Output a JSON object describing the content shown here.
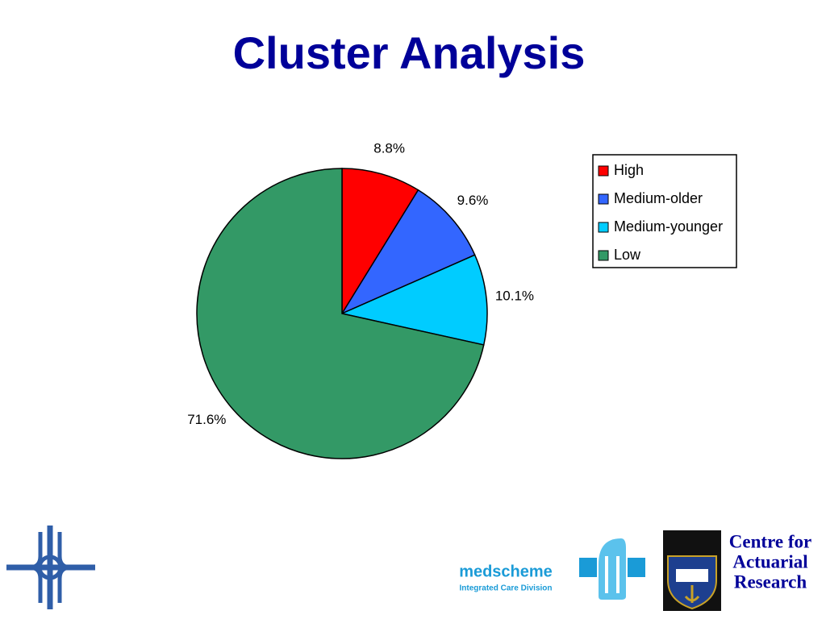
{
  "chart_data": {
    "type": "pie",
    "title": "Cluster Analysis",
    "categories": [
      "High",
      "Medium-older",
      "Medium-younger",
      "Low"
    ],
    "values": [
      8.8,
      9.6,
      10.1,
      71.6
    ],
    "value_labels": [
      "8.8%",
      "9.6%",
      "10.1%",
      "71.6%"
    ],
    "colors": [
      "#ff0000",
      "#3366ff",
      "#00ccff",
      "#339966"
    ],
    "legend": "right"
  },
  "footer": {
    "medscheme": "medscheme",
    "medscheme_sub": "Integrated Care Division",
    "centre": [
      "Centre for",
      "Actuarial",
      "Research"
    ]
  }
}
